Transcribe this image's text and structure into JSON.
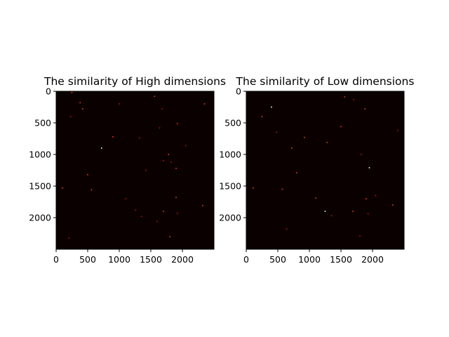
{
  "chart_data": [
    {
      "type": "heatmap",
      "title": "The similarity of High dimensions",
      "xlim": [
        0,
        2500
      ],
      "ylim": [
        2500,
        0
      ],
      "xticks": [
        0,
        500,
        1000,
        1500,
        2000
      ],
      "yticks": [
        0,
        500,
        1000,
        1500,
        2000
      ],
      "colormap": "hot",
      "background_color": "#0a0000",
      "mark_colors": [
        "#ff3a14",
        "#c21400",
        "#ffffff"
      ],
      "grid": false,
      "points": [
        {
          "x": 250,
          "y": 20,
          "v": 0.7
        },
        {
          "x": 380,
          "y": 180,
          "v": 0.6
        },
        {
          "x": 420,
          "y": 280,
          "v": 0.6
        },
        {
          "x": 230,
          "y": 400,
          "v": 0.5
        },
        {
          "x": 1560,
          "y": 80,
          "v": 0.6
        },
        {
          "x": 1680,
          "y": 280,
          "v": 0.5
        },
        {
          "x": 2350,
          "y": 200,
          "v": 0.6
        },
        {
          "x": 1000,
          "y": 200,
          "v": 0.4
        },
        {
          "x": 1920,
          "y": 510,
          "v": 0.6
        },
        {
          "x": 1640,
          "y": 580,
          "v": 0.5
        },
        {
          "x": 900,
          "y": 720,
          "v": 0.7
        },
        {
          "x": 1320,
          "y": 740,
          "v": 0.5
        },
        {
          "x": 720,
          "y": 900,
          "v": 1.0
        },
        {
          "x": 1780,
          "y": 1000,
          "v": 0.6
        },
        {
          "x": 1700,
          "y": 1100,
          "v": 0.5
        },
        {
          "x": 1820,
          "y": 1120,
          "v": 0.5
        },
        {
          "x": 1900,
          "y": 1220,
          "v": 0.6
        },
        {
          "x": 1420,
          "y": 1250,
          "v": 0.5
        },
        {
          "x": 500,
          "y": 1320,
          "v": 0.6
        },
        {
          "x": 100,
          "y": 1530,
          "v": 0.7
        },
        {
          "x": 560,
          "y": 1560,
          "v": 0.8
        },
        {
          "x": 1100,
          "y": 1700,
          "v": 0.5
        },
        {
          "x": 1900,
          "y": 1680,
          "v": 0.6
        },
        {
          "x": 1260,
          "y": 1880,
          "v": 0.5
        },
        {
          "x": 1700,
          "y": 1900,
          "v": 0.7
        },
        {
          "x": 1920,
          "y": 1930,
          "v": 0.5
        },
        {
          "x": 2320,
          "y": 1810,
          "v": 0.6
        },
        {
          "x": 1350,
          "y": 1980,
          "v": 0.5
        },
        {
          "x": 1600,
          "y": 2060,
          "v": 0.4
        },
        {
          "x": 1800,
          "y": 2300,
          "v": 0.6
        },
        {
          "x": 200,
          "y": 2320,
          "v": 0.5
        },
        {
          "x": 2050,
          "y": 860,
          "v": 0.4
        }
      ]
    },
    {
      "type": "heatmap",
      "title": "The similarity of Low dimensions",
      "xlim": [
        0,
        2500
      ],
      "ylim": [
        2500,
        0
      ],
      "xticks": [
        0,
        500,
        1000,
        1500,
        2000
      ],
      "yticks": [
        0,
        500,
        1000,
        1500,
        2000
      ],
      "colormap": "hot",
      "background_color": "#0a0000",
      "mark_colors": [
        "#ff3a14",
        "#c21400",
        "#ffffff"
      ],
      "grid": false,
      "points": [
        {
          "x": 1560,
          "y": 90,
          "v": 0.9
        },
        {
          "x": 1700,
          "y": 130,
          "v": 0.5
        },
        {
          "x": 1880,
          "y": 280,
          "v": 0.6
        },
        {
          "x": 400,
          "y": 250,
          "v": 1.0
        },
        {
          "x": 250,
          "y": 400,
          "v": 0.9
        },
        {
          "x": 1500,
          "y": 560,
          "v": 0.9
        },
        {
          "x": 480,
          "y": 650,
          "v": 0.5
        },
        {
          "x": 1280,
          "y": 810,
          "v": 0.6
        },
        {
          "x": 920,
          "y": 730,
          "v": 0.8
        },
        {
          "x": 720,
          "y": 900,
          "v": 0.8
        },
        {
          "x": 1820,
          "y": 1000,
          "v": 0.5
        },
        {
          "x": 1950,
          "y": 1210,
          "v": 1.0
        },
        {
          "x": 800,
          "y": 1290,
          "v": 0.6
        },
        {
          "x": 570,
          "y": 1550,
          "v": 0.9
        },
        {
          "x": 110,
          "y": 1530,
          "v": 0.6
        },
        {
          "x": 1100,
          "y": 1690,
          "v": 0.7
        },
        {
          "x": 1900,
          "y": 1700,
          "v": 0.6
        },
        {
          "x": 2050,
          "y": 1650,
          "v": 0.5
        },
        {
          "x": 1250,
          "y": 1900,
          "v": 1.0
        },
        {
          "x": 1690,
          "y": 1900,
          "v": 0.6
        },
        {
          "x": 1930,
          "y": 1940,
          "v": 0.5
        },
        {
          "x": 1350,
          "y": 1970,
          "v": 0.5
        },
        {
          "x": 2320,
          "y": 1800,
          "v": 0.6
        },
        {
          "x": 1800,
          "y": 2290,
          "v": 0.5
        },
        {
          "x": 640,
          "y": 2180,
          "v": 0.4
        },
        {
          "x": 2400,
          "y": 620,
          "v": 0.4
        }
      ]
    }
  ]
}
